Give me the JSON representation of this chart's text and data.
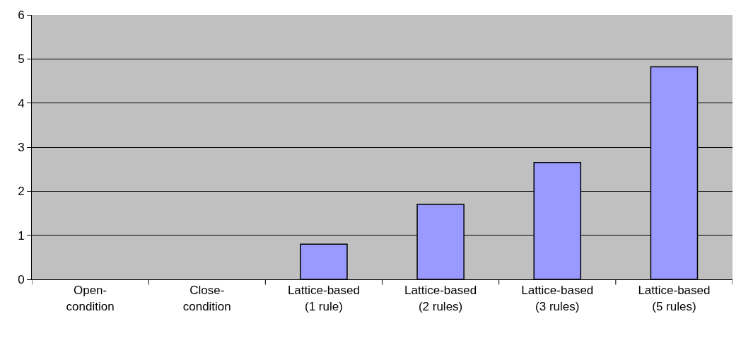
{
  "chart_data": {
    "type": "bar",
    "categories": [
      "Open-\ncondition",
      "Close-\ncondition",
      "Lattice-based\n(1 rule)",
      "Lattice-based\n(2 rules)",
      "Lattice-based\n(3 rules)",
      "Lattice-based\n(5 rules)"
    ],
    "values": [
      null,
      null,
      0.8,
      1.7,
      2.65,
      4.82
    ],
    "color": "#9999ff",
    "ylim": [
      0,
      6
    ],
    "yticks": [
      0,
      1,
      2,
      3,
      4,
      5,
      6
    ],
    "grid": "y",
    "legend": false
  }
}
